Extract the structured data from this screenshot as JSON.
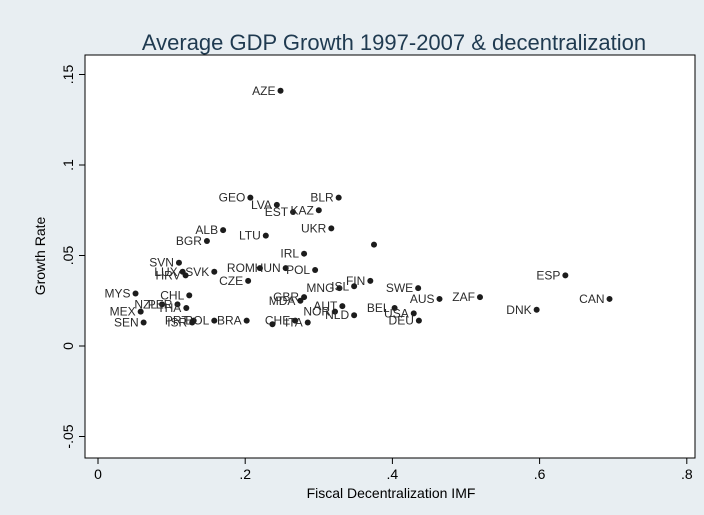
{
  "chart_data": {
    "type": "scatter",
    "title": "Average GDP Growth 1997-2007 & decentralization",
    "xlabel": "Fiscal Decentralization IMF",
    "ylabel": "Growth Rate",
    "xlim": [
      -0.01,
      0.81
    ],
    "ylim": [
      -0.06,
      0.16
    ],
    "x_ticks": [
      0,
      0.2,
      0.4,
      0.6,
      0.8
    ],
    "x_tick_labels": [
      "0",
      ".2",
      ".4",
      ".6",
      ".8"
    ],
    "y_ticks": [
      -0.05,
      0,
      0.05,
      0.1,
      0.15
    ],
    "y_tick_labels": [
      "-.05",
      "0",
      ".05",
      ".1",
      ".15"
    ],
    "grid": false,
    "points": [
      {
        "label": "AZE",
        "x": 0.248,
        "y": 0.141
      },
      {
        "label": "GEO",
        "x": 0.207,
        "y": 0.082
      },
      {
        "label": "BLR",
        "x": 0.327,
        "y": 0.082
      },
      {
        "label": "LVA",
        "x": 0.243,
        "y": 0.078
      },
      {
        "label": "EST",
        "x": 0.265,
        "y": 0.074
      },
      {
        "label": "KAZ",
        "x": 0.3,
        "y": 0.075
      },
      {
        "label": "ALB",
        "x": 0.17,
        "y": 0.064
      },
      {
        "label": "LTU",
        "x": 0.228,
        "y": 0.061
      },
      {
        "label": "UKR",
        "x": 0.317,
        "y": 0.065
      },
      {
        "label": "BGR",
        "x": 0.148,
        "y": 0.058
      },
      {
        "label": "",
        "x": 0.375,
        "y": 0.056
      },
      {
        "label": "IRL",
        "x": 0.28,
        "y": 0.051
      },
      {
        "label": "SVN",
        "x": 0.11,
        "y": 0.046
      },
      {
        "label": "HUN",
        "x": 0.255,
        "y": 0.043
      },
      {
        "label": "ROM",
        "x": 0.22,
        "y": 0.043
      },
      {
        "label": "POL",
        "x": 0.295,
        "y": 0.042
      },
      {
        "label": "SVK",
        "x": 0.158,
        "y": 0.041
      },
      {
        "label": "LUX",
        "x": 0.115,
        "y": 0.041
      },
      {
        "label": "HRV",
        "x": 0.119,
        "y": 0.039
      },
      {
        "label": "ESP",
        "x": 0.635,
        "y": 0.039
      },
      {
        "label": "CZE",
        "x": 0.204,
        "y": 0.036
      },
      {
        "label": "FIN",
        "x": 0.37,
        "y": 0.036
      },
      {
        "label": "MNG",
        "x": 0.328,
        "y": 0.032
      },
      {
        "label": "ISL",
        "x": 0.348,
        "y": 0.033
      },
      {
        "label": "SWE",
        "x": 0.435,
        "y": 0.032
      },
      {
        "label": "MYS",
        "x": 0.051,
        "y": 0.029
      },
      {
        "label": "CHL",
        "x": 0.124,
        "y": 0.028
      },
      {
        "label": "GBR",
        "x": 0.28,
        "y": 0.027
      },
      {
        "label": "MDA",
        "x": 0.275,
        "y": 0.025
      },
      {
        "label": "AUS",
        "x": 0.464,
        "y": 0.026
      },
      {
        "label": "ZAF",
        "x": 0.519,
        "y": 0.027
      },
      {
        "label": "CAN",
        "x": 0.695,
        "y": 0.026
      },
      {
        "label": "NZL",
        "x": 0.087,
        "y": 0.023
      },
      {
        "label": "PER",
        "x": 0.108,
        "y": 0.023
      },
      {
        "label": "AUT",
        "x": 0.332,
        "y": 0.022
      },
      {
        "label": "THA",
        "x": 0.12,
        "y": 0.021
      },
      {
        "label": "BEL",
        "x": 0.403,
        "y": 0.021
      },
      {
        "label": "NOR",
        "x": 0.322,
        "y": 0.019
      },
      {
        "label": "MEX",
        "x": 0.058,
        "y": 0.019
      },
      {
        "label": "USA",
        "x": 0.429,
        "y": 0.018
      },
      {
        "label": "DNK",
        "x": 0.596,
        "y": 0.02
      },
      {
        "label": "NLD",
        "x": 0.348,
        "y": 0.017
      },
      {
        "label": "BRA",
        "x": 0.202,
        "y": 0.014
      },
      {
        "label": "PRT",
        "x": 0.13,
        "y": 0.014
      },
      {
        "label": "BOL",
        "x": 0.158,
        "y": 0.014
      },
      {
        "label": "CHE",
        "x": 0.268,
        "y": 0.014
      },
      {
        "label": "DEU",
        "x": 0.436,
        "y": 0.014
      },
      {
        "label": "SEN",
        "x": 0.062,
        "y": 0.013
      },
      {
        "label": "ISR",
        "x": 0.128,
        "y": 0.013
      },
      {
        "label": "ITA",
        "x": 0.285,
        "y": 0.013
      },
      {
        "label": "",
        "x": 0.237,
        "y": 0.012
      }
    ],
    "colors": {
      "background": "#e8eef2",
      "plot_area": "#ffffff",
      "marker": "#1c1c1c",
      "title": "#1f3a50"
    }
  }
}
